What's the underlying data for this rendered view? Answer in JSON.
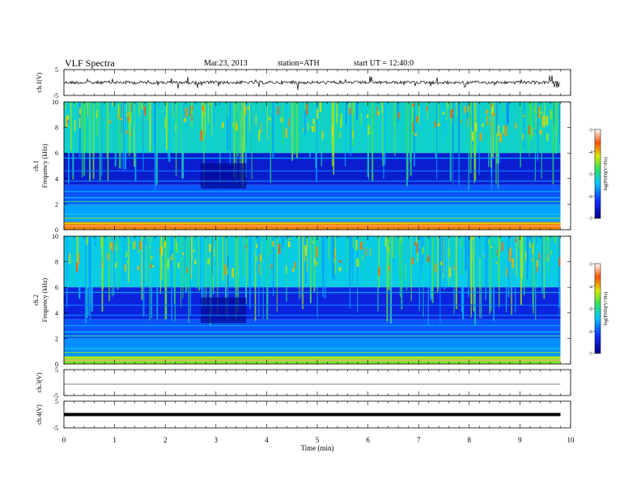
{
  "header": {
    "title": "VLF Spectra",
    "date": "Mar.23, 2013",
    "station": "station=ATH",
    "start": "start UT =  12:40:0"
  },
  "chart_data": [
    {
      "type": "line",
      "panel": "ch1-waveform",
      "ylabel": "ch.1(V)",
      "ylim": [
        -5,
        5
      ],
      "yticks": [
        "5",
        "-5"
      ],
      "description_values": "noisy waveform centered near 0 V, amplitude ~±1 V with spikes"
    },
    {
      "type": "heatmap",
      "panel": "ch1-spectrogram",
      "ylabel": [
        "ch.1",
        "Frequency (kHz)"
      ],
      "ylim": [
        0,
        10
      ],
      "yticks": [
        "0",
        "2",
        "4",
        "6",
        "8",
        "10"
      ],
      "colorbar": {
        "label": "log(PSD)(V²/Hz)",
        "range": [
          -7,
          -3
        ],
        "ticks": [
          "-3",
          "-4",
          "-5",
          "-6",
          "-7"
        ]
      },
      "bands": [
        {
          "fmin": 6,
          "fmax": 10,
          "level": -5.2
        },
        {
          "fmin": 3.5,
          "fmax": 6,
          "level": -6.5
        },
        {
          "fmin": 2,
          "fmax": 3.5,
          "level": -6.0
        },
        {
          "fmin": 0.6,
          "fmax": 2,
          "level": -5.6
        },
        {
          "fmin": 0,
          "fmax": 0.6,
          "level": -3.8
        }
      ]
    },
    {
      "type": "heatmap",
      "panel": "ch2-spectrogram",
      "ylabel": [
        "ch.2",
        "Frequency (kHz)"
      ],
      "ylim": [
        0,
        10
      ],
      "yticks": [
        "0",
        "2",
        "4",
        "6",
        "8",
        "10"
      ],
      "colorbar": {
        "label": "log(PSD)(V²/Hz)",
        "range": [
          -7,
          -3
        ],
        "ticks": [
          "-3",
          "-4",
          "-5",
          "-6",
          "-7"
        ]
      },
      "bands": [
        {
          "fmin": 6,
          "fmax": 10,
          "level": -5.3
        },
        {
          "fmin": 3.5,
          "fmax": 6,
          "level": -6.4
        },
        {
          "fmin": 2,
          "fmax": 3.5,
          "level": -6.0
        },
        {
          "fmin": 0.6,
          "fmax": 2,
          "level": -5.7
        },
        {
          "fmin": 0,
          "fmax": 0.6,
          "level": -4.5
        }
      ]
    },
    {
      "type": "line",
      "panel": "ch3-waveform",
      "ylabel": "ch.3(V)",
      "ylim": [
        -5,
        5
      ],
      "yticks": [
        "5",
        "-5"
      ],
      "description_values": "flat near 0 V"
    },
    {
      "type": "line",
      "panel": "ch4-waveform",
      "ylabel": "ch.4(V)",
      "ylim": [
        -5,
        5
      ],
      "yticks": [
        "5",
        "-5"
      ],
      "description_values": "thick flat band near 0 V"
    }
  ],
  "xaxis": {
    "label": "Time (min)",
    "range": [
      0,
      10
    ],
    "data_end": 9.8,
    "ticks": [
      "0",
      "1",
      "2",
      "3",
      "4",
      "5",
      "6",
      "7",
      "8",
      "9",
      "10"
    ]
  }
}
